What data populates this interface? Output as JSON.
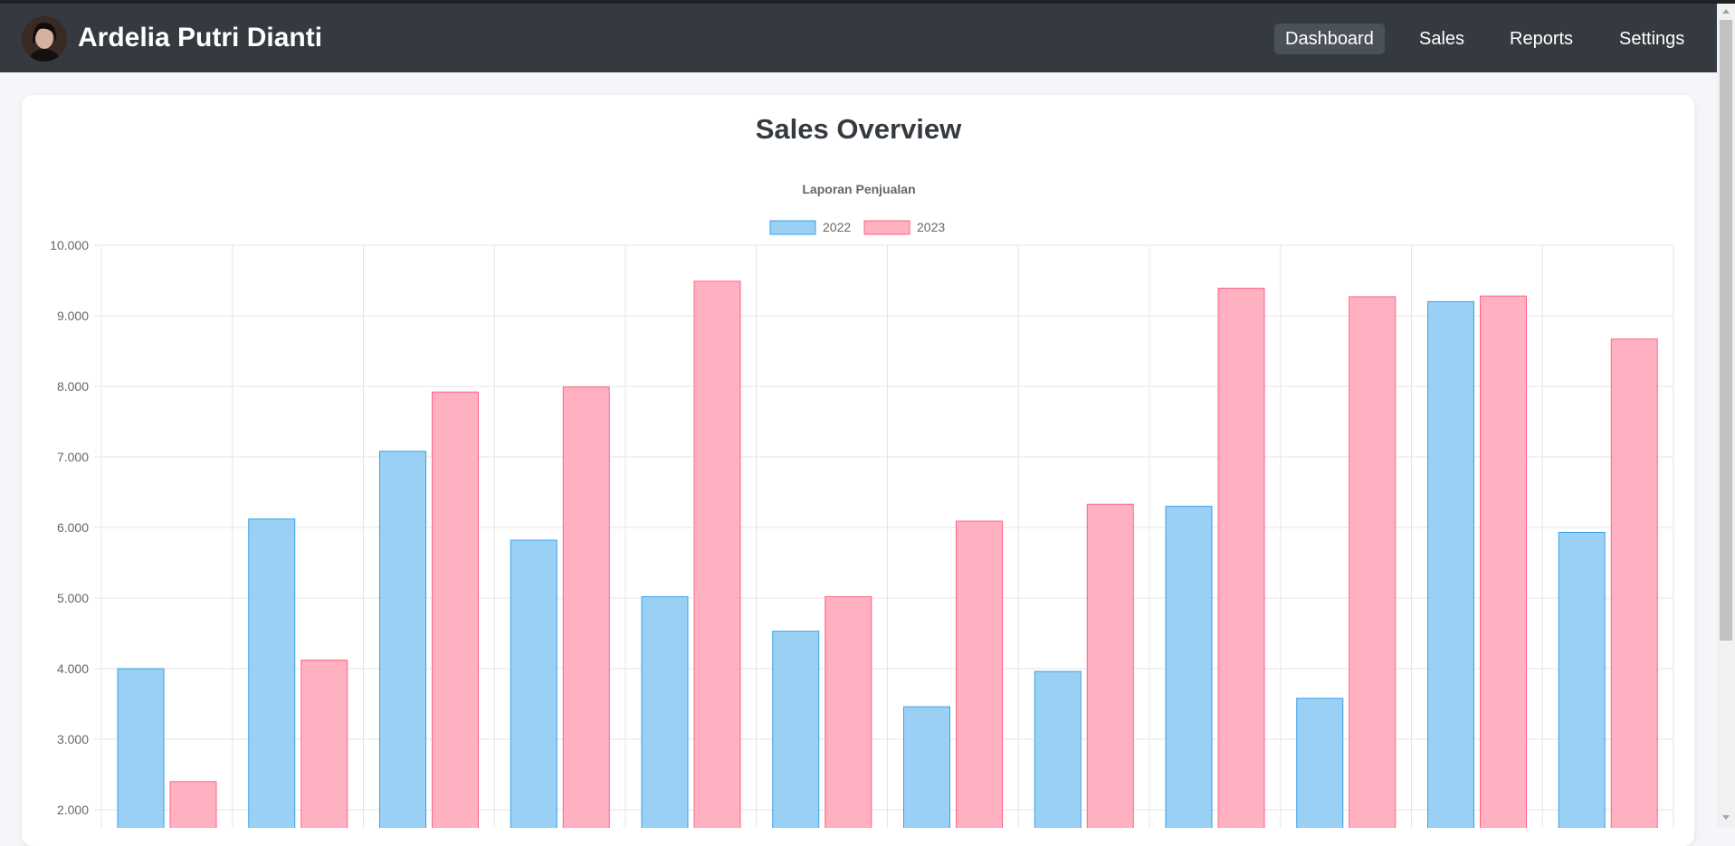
{
  "navbar": {
    "brand": "Ardelia Putri Dianti",
    "links": [
      {
        "label": "Dashboard",
        "active": true
      },
      {
        "label": "Sales",
        "active": false
      },
      {
        "label": "Reports",
        "active": false
      },
      {
        "label": "Settings",
        "active": false
      }
    ]
  },
  "card": {
    "title": "Sales Overview"
  },
  "chart_data": {
    "type": "bar",
    "title": "Laporan Penjualan",
    "xlabel": "",
    "ylabel": "",
    "ylim": [
      2000,
      10000
    ],
    "yticks": [
      "2.000",
      "3.000",
      "4.000",
      "5.000",
      "6.000",
      "7.000",
      "8.000",
      "9.000",
      "10.000"
    ],
    "grid": true,
    "legend_position": "top",
    "categories_count": 12,
    "series": [
      {
        "name": "2022",
        "color": "#9bd0f5",
        "border": "#36a2eb",
        "values": [
          4000,
          6120,
          7080,
          5820,
          5020,
          4530,
          3460,
          3960,
          6300,
          3580,
          9200,
          5930
        ]
      },
      {
        "name": "2023",
        "color": "#ffb1c1",
        "border": "#ff6384",
        "values": [
          2400,
          4120,
          7920,
          7990,
          9490,
          5020,
          6090,
          6330,
          9390,
          9270,
          9280,
          8670
        ]
      }
    ]
  }
}
